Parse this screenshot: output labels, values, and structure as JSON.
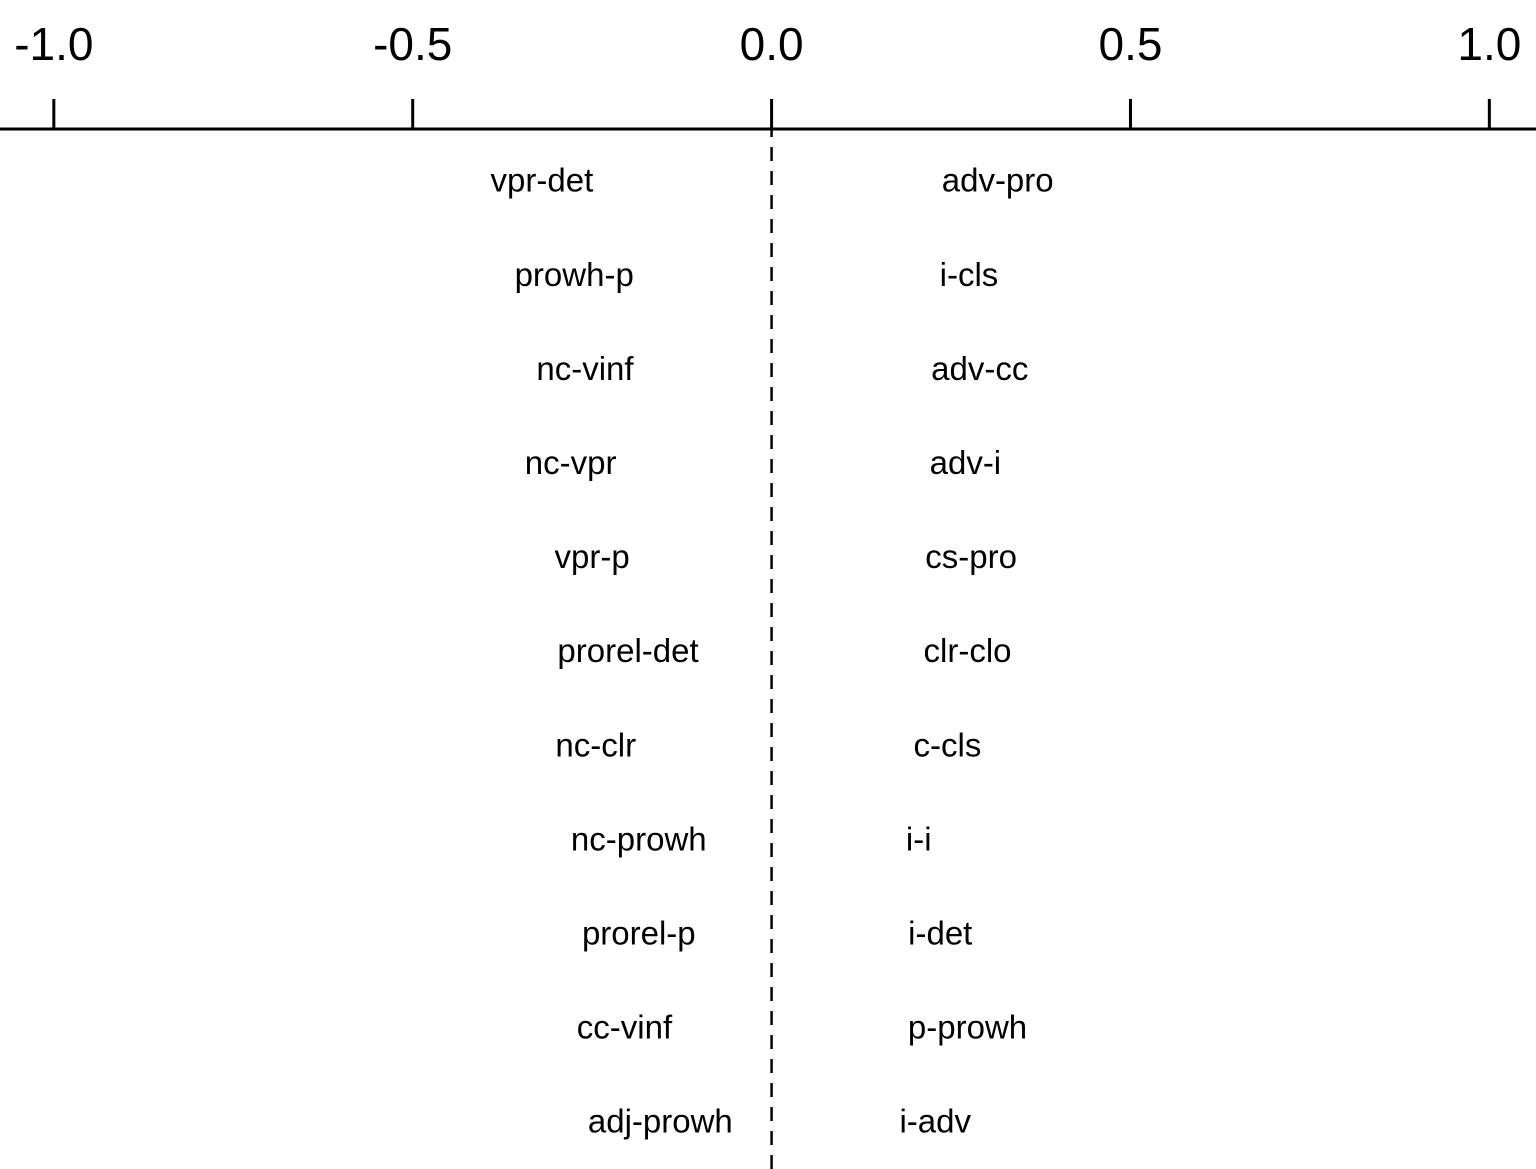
{
  "chart_data": {
    "type": "scatter",
    "title": "",
    "xlabel": "",
    "ylabel": "",
    "axis_position": "top",
    "xlim": [
      -1.075,
      1.065
    ],
    "xticks": [
      -1.0,
      -0.5,
      0.0,
      0.5,
      1.0
    ],
    "xtick_labels": [
      "-1.0",
      "-0.5",
      "0.0",
      "0.5",
      "1.0"
    ],
    "reference_line": {
      "x": 0.0,
      "style": "dashed"
    },
    "negative_labels": [
      {
        "label": "vpr-det",
        "x": -0.32
      },
      {
        "label": "prowh-p",
        "x": -0.275
      },
      {
        "label": "nc-vinf",
        "x": -0.26
      },
      {
        "label": "nc-vpr",
        "x": -0.28
      },
      {
        "label": "vpr-p",
        "x": -0.25
      },
      {
        "label": "prorel-det",
        "x": -0.2
      },
      {
        "label": "nc-clr",
        "x": -0.245
      },
      {
        "label": "nc-prowh",
        "x": -0.185
      },
      {
        "label": "prorel-p",
        "x": -0.185
      },
      {
        "label": "cc-vinf",
        "x": -0.205
      },
      {
        "label": "adj-prowh",
        "x": -0.155
      }
    ],
    "positive_labels": [
      {
        "label": "adv-pro",
        "x": 0.315
      },
      {
        "label": "i-cls",
        "x": 0.275
      },
      {
        "label": "adv-cc",
        "x": 0.29
      },
      {
        "label": "adv-i",
        "x": 0.27
      },
      {
        "label": "cs-pro",
        "x": 0.278
      },
      {
        "label": "clr-clo",
        "x": 0.273
      },
      {
        "label": "c-cls",
        "x": 0.245
      },
      {
        "label": "i-i",
        "x": 0.205
      },
      {
        "label": "i-det",
        "x": 0.235
      },
      {
        "label": "p-prowh",
        "x": 0.273
      },
      {
        "label": "i-adv",
        "x": 0.228
      }
    ]
  }
}
